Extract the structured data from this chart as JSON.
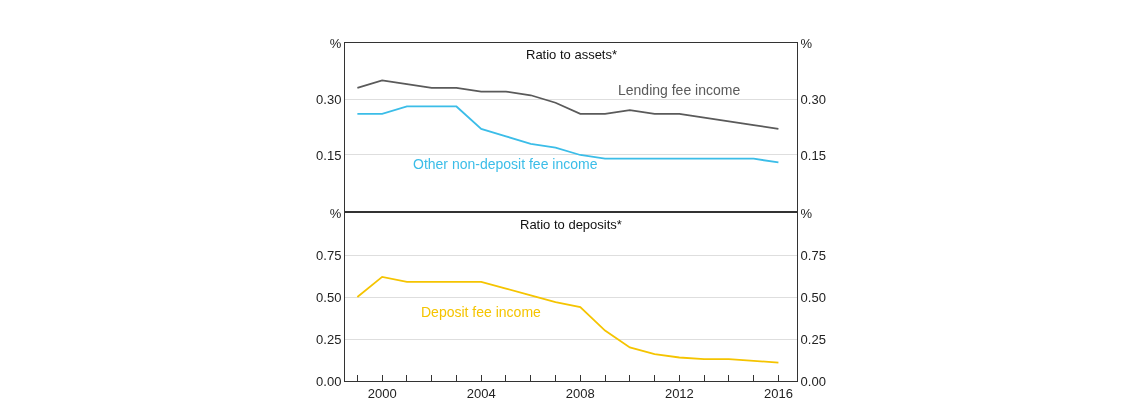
{
  "chart_data": [
    {
      "type": "line",
      "title": "Ratio to assets*",
      "x": [
        1999,
        2000,
        2001,
        2002,
        2003,
        2004,
        2005,
        2006,
        2007,
        2008,
        2009,
        2010,
        2011,
        2012,
        2013,
        2014,
        2015,
        2016
      ],
      "series": [
        {
          "name": "Lending fee income",
          "color": "#5a5a5a",
          "values": [
            0.33,
            0.35,
            0.34,
            0.33,
            0.33,
            0.32,
            0.32,
            0.31,
            0.29,
            0.26,
            0.26,
            0.27,
            0.26,
            0.26,
            0.25,
            0.24,
            0.23,
            0.22
          ]
        },
        {
          "name": "Other non-deposit fee income",
          "color": "#3bbde8",
          "values": [
            0.26,
            0.26,
            0.28,
            0.28,
            0.28,
            0.22,
            0.2,
            0.18,
            0.17,
            0.15,
            0.14,
            0.14,
            0.14,
            0.14,
            0.14,
            0.14,
            0.14,
            0.13
          ]
        }
      ],
      "xlim": [
        1998.5,
        2016.75
      ],
      "ylim": [
        0,
        0.45
      ],
      "yticks": [
        {
          "value": 0.15,
          "label": "0.15"
        },
        {
          "value": 0.3,
          "label": "0.30"
        },
        {
          "value": 0.45,
          "label": "%"
        }
      ],
      "y2lim": [
        0,
        0.45
      ],
      "y2ticks": [
        {
          "value": 0.15,
          "label": "0.15"
        },
        {
          "value": 0.3,
          "label": "0.30"
        },
        {
          "value": 0.45,
          "label": "%"
        }
      ],
      "tick_labels": "y",
      "grid": "y",
      "legend": false
    },
    {
      "type": "line",
      "title": "Ratio to deposits*",
      "x": [
        1999,
        2000,
        2001,
        2002,
        2003,
        2004,
        2005,
        2006,
        2007,
        2008,
        2009,
        2010,
        2011,
        2012,
        2013,
        2014,
        2015,
        2016
      ],
      "series": [
        {
          "name": "Deposit fee income",
          "color": "#f5c400",
          "values": [
            0.5,
            0.62,
            0.59,
            0.59,
            0.59,
            0.59,
            0.55,
            0.51,
            0.47,
            0.44,
            0.3,
            0.2,
            0.16,
            0.14,
            0.13,
            0.13,
            0.12,
            0.11
          ]
        }
      ],
      "xlim": [
        1998.5,
        2016.75
      ],
      "xticks": [
        {
          "value": 1999,
          "label": null
        },
        2000,
        {
          "value": 2001,
          "label": null
        },
        {
          "value": 2002,
          "label": null
        },
        {
          "value": 2003,
          "label": null
        },
        2004,
        {
          "value": 2005,
          "label": null
        },
        {
          "value": 2006,
          "label": null
        },
        {
          "value": 2007,
          "label": null
        },
        2008,
        {
          "value": 2009,
          "label": null
        },
        {
          "value": 2010,
          "label": null
        },
        {
          "value": 2011,
          "label": null
        },
        2012,
        {
          "value": 2013,
          "label": null
        },
        {
          "value": 2014,
          "label": null
        },
        {
          "value": 2015,
          "label": null
        },
        2016
      ],
      "ylim": [
        0,
        1
      ],
      "yticks": [
        {
          "value": 0,
          "label": "0.00"
        },
        {
          "value": 0.25,
          "label": "0.25"
        },
        {
          "value": 0.5,
          "label": "0.50"
        },
        {
          "value": 0.75,
          "label": "0.75"
        },
        {
          "value": 1,
          "label": "%"
        }
      ],
      "y2lim": [
        0,
        1
      ],
      "y2ticks": [
        {
          "value": 0,
          "label": "0.00"
        },
        {
          "value": 0.25,
          "label": "0.25"
        },
        {
          "value": 0.5,
          "label": "0.50"
        },
        {
          "value": 0.75,
          "label": "0.75"
        },
        {
          "value": 1,
          "label": "%"
        }
      ],
      "grid": "y",
      "legend": false
    }
  ]
}
